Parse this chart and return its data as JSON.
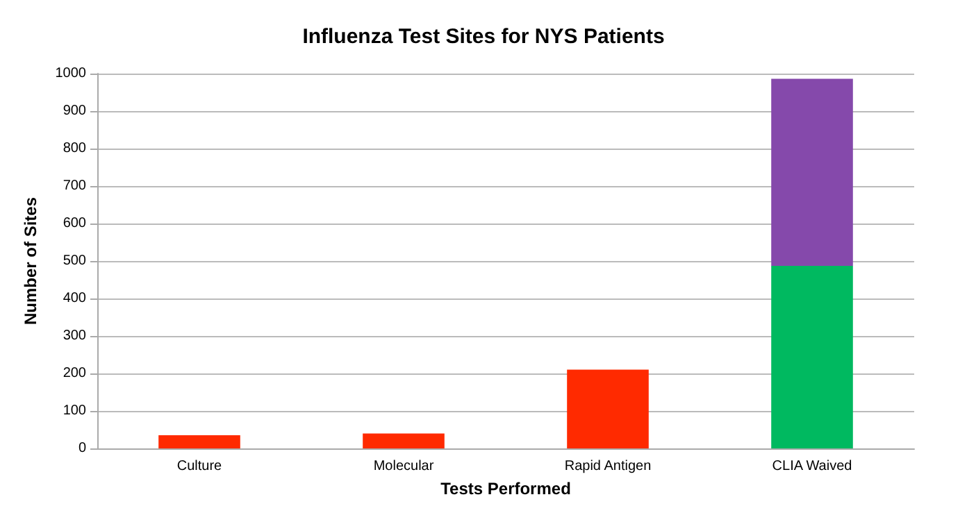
{
  "chart_data": {
    "type": "bar",
    "title": "Influenza Test Sites for NYS Patients",
    "xlabel": "Tests Performed",
    "ylabel": "Number of Sites",
    "categories": [
      "Culture",
      "Molecular",
      "Rapid Antigen",
      "CLIA Waived"
    ],
    "stacked": true,
    "series": [
      {
        "color": "#ff2a00",
        "values": [
          35,
          40,
          210,
          null
        ]
      },
      {
        "color": "#00b960",
        "values": [
          null,
          null,
          null,
          487
        ]
      },
      {
        "color": "#8549ab",
        "values": [
          null,
          null,
          null,
          499
        ]
      }
    ],
    "ylim": [
      0,
      1000
    ],
    "yticks": [
      0,
      100,
      200,
      300,
      400,
      500,
      600,
      700,
      800,
      900,
      1000
    ],
    "grid": "y"
  }
}
